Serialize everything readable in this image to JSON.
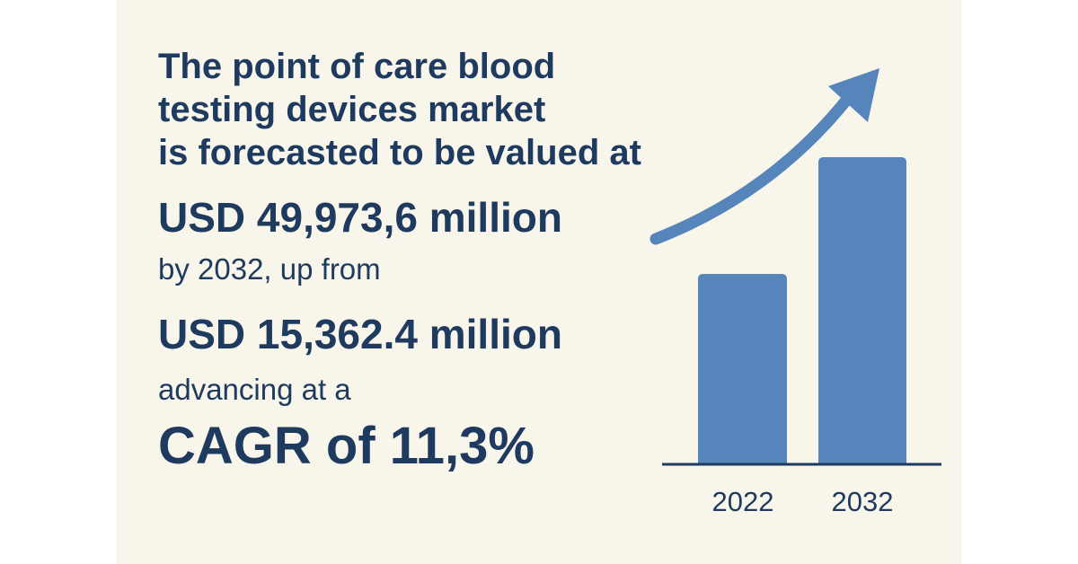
{
  "headline": [
    "The point of care blood",
    "testing devices market",
    "is forecasted to be valued at"
  ],
  "forecast_value": "USD 49,973,6 million",
  "by_text": "by 2032, up from",
  "base_value": "USD 15,362.4 million",
  "advancing_text": "advancing at a",
  "cagr": "CAGR of 11,3%",
  "chart": {
    "years": [
      "2022",
      "2032"
    ]
  }
}
